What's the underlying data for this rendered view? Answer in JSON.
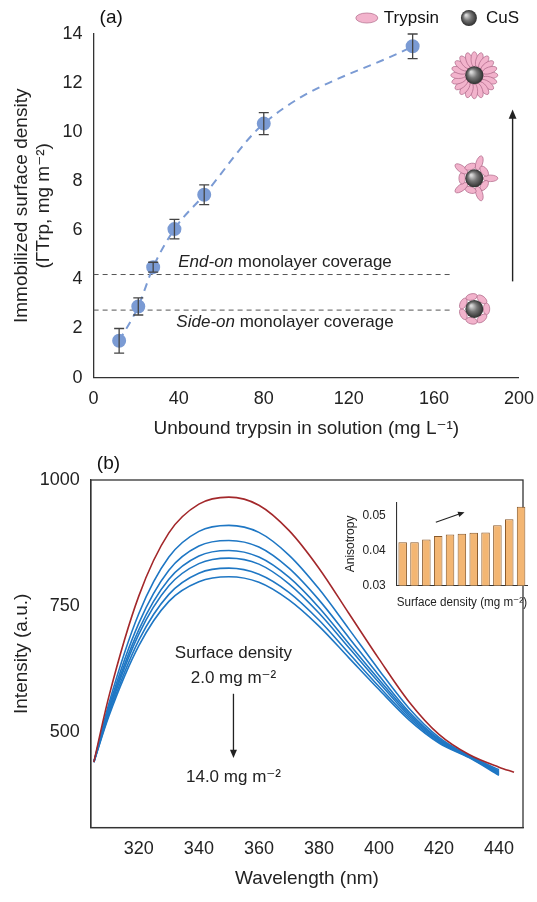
{
  "chart_data": [
    {
      "panel": "(a)",
      "type": "scatter",
      "x_label": "Unbound trypsin in solution (mg L⁻¹)",
      "y_label": "Immobilized surface density (ΓTrp, mg m⁻²)",
      "xlim": [
        0,
        200
      ],
      "xticks": [
        0,
        40,
        80,
        120,
        160,
        200
      ],
      "ylim": [
        0,
        14
      ],
      "yticks": [
        0,
        2,
        4,
        6,
        8,
        10,
        12,
        14
      ],
      "grid": false,
      "legend": "top-right",
      "legend_items": [
        {
          "name": "Trypsin",
          "color": "#f2b3cc"
        },
        {
          "name": "CuS",
          "color": "#2e2e2e"
        }
      ],
      "x": [
        12,
        21,
        28,
        38,
        52,
        80,
        150
      ],
      "series": [
        {
          "color": "#7b9bd4",
          "marker": "circle",
          "line_style": "dashed",
          "values": [
            1.5,
            2.9,
            4.5,
            6.05,
            7.45,
            10.35,
            13.5
          ],
          "errors": [
            0.5,
            0.35,
            0.2,
            0.4,
            0.4,
            0.45,
            0.5
          ]
        }
      ],
      "annotations": [
        {
          "text": "End-on monolayer coverage",
          "y": 4.2
        },
        {
          "text": "Side-on monolayer coverage",
          "y": 2.75
        }
      ]
    },
    {
      "panel": "(b)",
      "type": "line",
      "x_label": "Wavelength (nm)",
      "y_label": "Intensity (a.u.)",
      "xlim": [
        304,
        448
      ],
      "xticks": [
        320,
        340,
        360,
        380,
        400,
        420,
        440
      ],
      "ylim": [
        310,
        1000
      ],
      "yticks": [
        500,
        750,
        1000
      ],
      "grid": false,
      "x": [
        305,
        310,
        320,
        330,
        340,
        350,
        360,
        370,
        380,
        390,
        400,
        410,
        420,
        430,
        440,
        445
      ],
      "series": [
        {
          "color": "#a3282b",
          "values": [
            440,
            570,
            770,
            895,
            952,
            966,
            950,
            900,
            825,
            735,
            645,
            560,
            495,
            455,
            430,
            420
          ]
        },
        {
          "color": "#1f77c4",
          "values": [
            440,
            556,
            735,
            847,
            898,
            910,
            896,
            851,
            784,
            704,
            623,
            547,
            489,
            453,
            425,
            null
          ]
        },
        {
          "color": "#1f77c4",
          "values": [
            440,
            549,
            716,
            821,
            869,
            880,
            867,
            825,
            762,
            687,
            612,
            540,
            486,
            452,
            422,
            null
          ]
        },
        {
          "color": "#1f77c4",
          "values": [
            440,
            544,
            703,
            803,
            849,
            860,
            847,
            807,
            747,
            675,
            604,
            536,
            484,
            452,
            420,
            null
          ]
        },
        {
          "color": "#1f77c4",
          "values": [
            440,
            540,
            694,
            790,
            834,
            845,
            833,
            794,
            736,
            667,
            598,
            532,
            482,
            451,
            418,
            null
          ]
        },
        {
          "color": "#1f77c4",
          "values": [
            440,
            535,
            682,
            773,
            815,
            825,
            813,
            777,
            722,
            656,
            590,
            528,
            480,
            450,
            416,
            null
          ]
        },
        {
          "color": "#1f77c4",
          "values": [
            440,
            531,
            671,
            759,
            798,
            808,
            797,
            762,
            710,
            647,
            584,
            524,
            478,
            449,
            414,
            null
          ]
        }
      ],
      "annotations": [
        {
          "text": "Surface density"
        },
        {
          "text": "2.0 mg m⁻²"
        },
        {
          "text": "14.0 mg m⁻²"
        }
      ]
    },
    {
      "type": "bar",
      "x_label": "Surface density (mg m⁻²)",
      "y_label": "Anisotropy",
      "categories": [
        null,
        null,
        null,
        null,
        null,
        null,
        null,
        null,
        null,
        null,
        null
      ],
      "values": [
        0.0425,
        0.0425,
        0.0433,
        0.0443,
        0.0447,
        0.0449,
        0.0452,
        0.0453,
        0.0474,
        0.0491,
        0.0527
      ],
      "color": "#f3b673",
      "ylim": [
        0.03,
        0.054
      ],
      "yticks": [
        0.03,
        0.04,
        0.05
      ],
      "tick_labels": "y",
      "grid": false
    }
  ]
}
